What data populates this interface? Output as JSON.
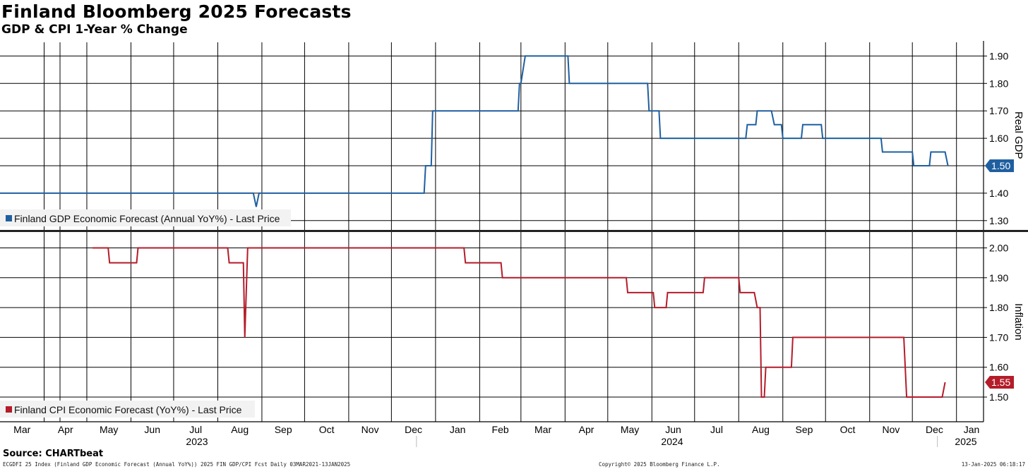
{
  "title": "Finland Bloomberg 2025 Forecasts",
  "subtitle": "GDP & CPI 1-Year % Change",
  "source": "Source: CHARTbeat",
  "footer": {
    "left": "ECGDFI 25 Index (Finland GDP Economic Forecast (Annual YoY%)) 2025 FIN GDP/CPI Fcst  Daily 03MAR2021-13JAN2025",
    "center": "Copyright© 2025 Bloomberg Finance L.P.",
    "right": "13-Jan-2025 06:18:17"
  },
  "colors": {
    "gdp": "#1f5fa0",
    "cpi": "#b41c2a",
    "grid": "#000000"
  },
  "chart_data": [
    {
      "type": "line",
      "title": "",
      "ylabel": "Real GDP",
      "yticks": [
        "1.30",
        "1.40",
        "1.50",
        "1.60",
        "1.70",
        "1.80",
        "1.90"
      ],
      "ylim": [
        1.27,
        1.95
      ],
      "legend": "Finland GDP Economic Forecast (Annual YoY%) - Last Price",
      "legend_position": "bottom-left",
      "last_value_label": "1.50",
      "series": [
        {
          "name": "Finland GDP Economic Forecast (Annual YoY%) - Last Price",
          "points": [
            [
              "2023-03-01",
              1.4
            ],
            [
              "2023-08-26",
              1.4
            ],
            [
              "2023-08-28",
              1.35
            ],
            [
              "2023-08-30",
              1.4
            ],
            [
              "2023-12-24",
              1.4
            ],
            [
              "2023-12-25",
              1.5
            ],
            [
              "2023-12-29",
              1.5
            ],
            [
              "2023-12-30",
              1.7
            ],
            [
              "2024-02-28",
              1.7
            ],
            [
              "2024-02-29",
              1.8
            ],
            [
              "2024-03-01",
              1.8
            ],
            [
              "2024-03-04",
              1.9
            ],
            [
              "2024-04-03",
              1.9
            ],
            [
              "2024-04-04",
              1.8
            ],
            [
              "2024-05-29",
              1.8
            ],
            [
              "2024-05-30",
              1.7
            ],
            [
              "2024-06-06",
              1.7
            ],
            [
              "2024-06-07",
              1.6
            ],
            [
              "2024-08-06",
              1.6
            ],
            [
              "2024-08-07",
              1.65
            ],
            [
              "2024-08-13",
              1.65
            ],
            [
              "2024-08-14",
              1.7
            ],
            [
              "2024-08-24",
              1.7
            ],
            [
              "2024-08-26",
              1.65
            ],
            [
              "2024-08-31",
              1.65
            ],
            [
              "2024-09-01",
              1.6
            ],
            [
              "2024-09-14",
              1.6
            ],
            [
              "2024-09-15",
              1.65
            ],
            [
              "2024-09-28",
              1.65
            ],
            [
              "2024-09-29",
              1.6
            ],
            [
              "2024-11-09",
              1.6
            ],
            [
              "2024-11-10",
              1.55
            ],
            [
              "2024-12-01",
              1.55
            ],
            [
              "2024-12-02",
              1.5
            ],
            [
              "2024-12-13",
              1.5
            ],
            [
              "2024-12-14",
              1.55
            ],
            [
              "2024-12-24",
              1.55
            ],
            [
              "2024-12-26",
              1.5
            ]
          ]
        }
      ]
    },
    {
      "type": "line",
      "title": "",
      "ylabel": "Inflation",
      "yticks": [
        "1.50",
        "1.60",
        "1.70",
        "1.80",
        "1.90",
        "2.00"
      ],
      "ylim": [
        1.42,
        2.06
      ],
      "legend": "Finland CPI Economic Forecast (YoY%) - Last Price",
      "legend_position": "bottom-left",
      "last_value_label": "1.55",
      "series": [
        {
          "name": "Finland CPI Economic Forecast (YoY%) - Last Price",
          "points": [
            [
              "2023-05-05",
              2.0
            ],
            [
              "2023-05-16",
              2.0
            ],
            [
              "2023-05-17",
              1.95
            ],
            [
              "2023-06-05",
              1.95
            ],
            [
              "2023-06-06",
              2.0
            ],
            [
              "2023-08-08",
              2.0
            ],
            [
              "2023-08-09",
              1.95
            ],
            [
              "2023-08-19",
              1.95
            ],
            [
              "2023-08-20",
              1.7
            ],
            [
              "2023-08-22",
              2.0
            ],
            [
              "2024-01-21",
              2.0
            ],
            [
              "2024-01-22",
              1.95
            ],
            [
              "2024-02-16",
              1.95
            ],
            [
              "2024-02-17",
              1.9
            ],
            [
              "2024-05-14",
              1.9
            ],
            [
              "2024-05-15",
              1.85
            ],
            [
              "2024-06-02",
              1.85
            ],
            [
              "2024-06-03",
              1.8
            ],
            [
              "2024-06-11",
              1.8
            ],
            [
              "2024-06-12",
              1.85
            ],
            [
              "2024-07-07",
              1.85
            ],
            [
              "2024-07-08",
              1.9
            ],
            [
              "2024-08-01",
              1.9
            ],
            [
              "2024-08-02",
              1.85
            ],
            [
              "2024-08-12",
              1.85
            ],
            [
              "2024-08-14",
              1.8
            ],
            [
              "2024-08-16",
              1.8
            ],
            [
              "2024-08-17",
              1.5
            ],
            [
              "2024-08-19",
              1.5
            ],
            [
              "2024-08-20",
              1.6
            ],
            [
              "2024-09-07",
              1.6
            ],
            [
              "2024-09-08",
              1.7
            ],
            [
              "2024-11-25",
              1.7
            ],
            [
              "2024-11-27",
              1.5
            ],
            [
              "2024-12-22",
              1.5
            ],
            [
              "2024-12-24",
              1.55
            ]
          ]
        }
      ]
    }
  ],
  "x_axis": {
    "months": [
      "Mar",
      "Apr",
      "May",
      "Jun",
      "Jul",
      "Aug",
      "Sep",
      "Oct",
      "Nov",
      "Dec",
      "Jan",
      "Feb",
      "Mar",
      "Apr",
      "May",
      "Jun",
      "Jul",
      "Aug",
      "Sep",
      "Oct",
      "Nov",
      "Dec",
      "Jan"
    ],
    "years": [
      "2023",
      "2024",
      "2025"
    ]
  }
}
